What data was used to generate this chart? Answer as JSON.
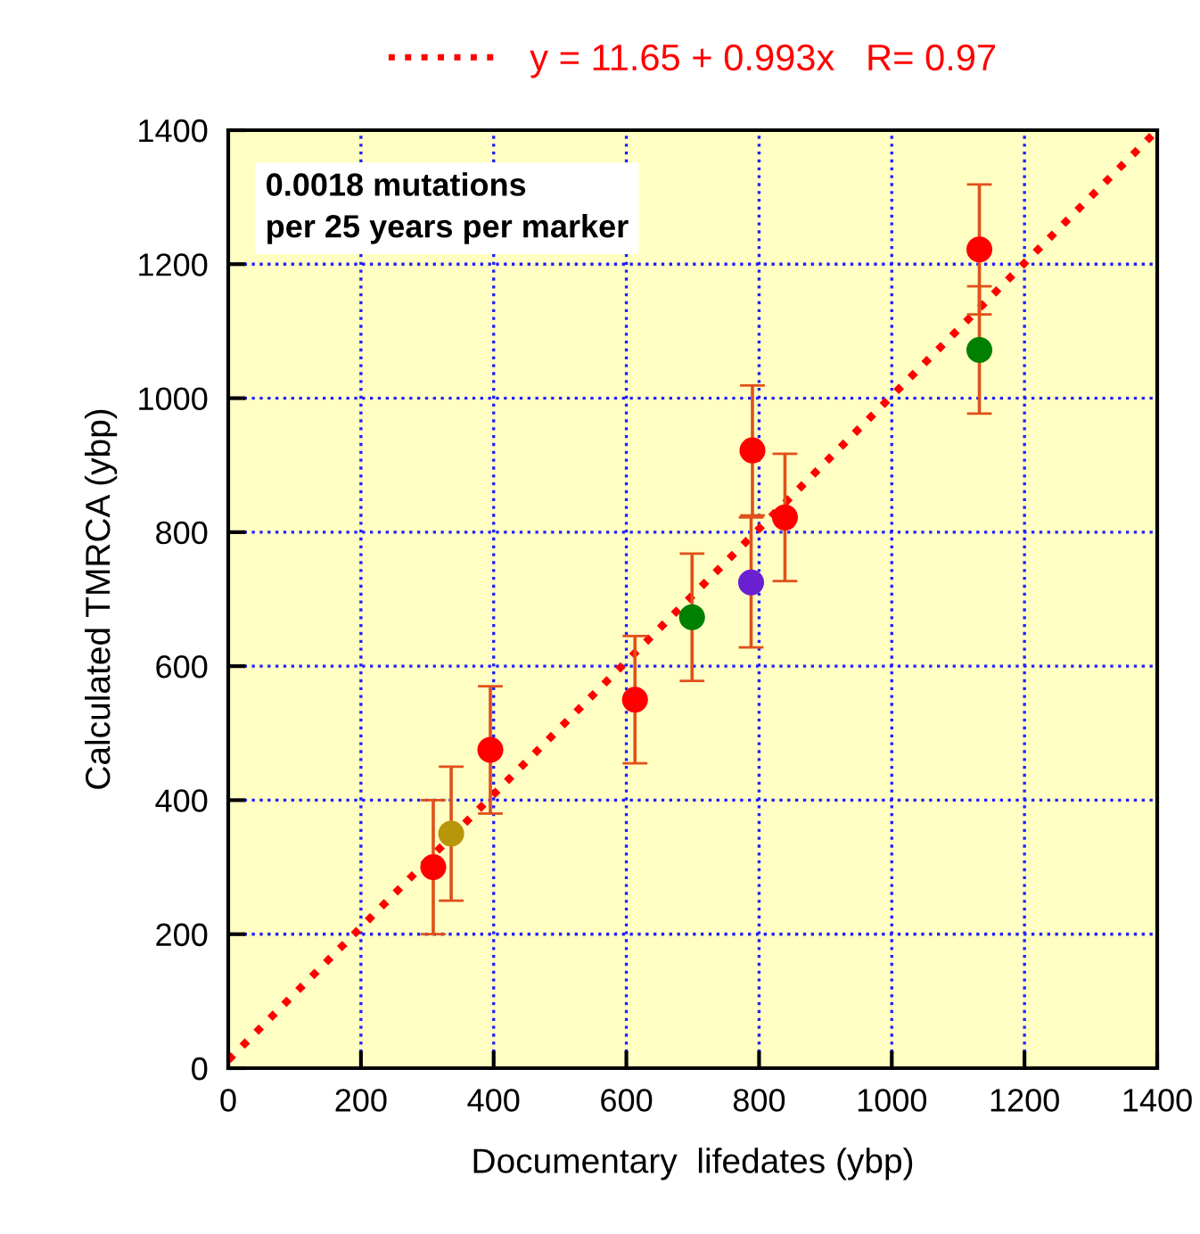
{
  "chart_data": {
    "type": "scatter",
    "xlabel": "Documentary  lifedates (ybp)",
    "ylabel": "Calculated TMRCA (ybp)",
    "xlim": [
      0,
      1400
    ],
    "ylim": [
      0,
      1400
    ],
    "xticks": [
      0,
      200,
      400,
      600,
      800,
      1000,
      1200,
      1400
    ],
    "yticks": [
      0,
      200,
      400,
      600,
      800,
      1000,
      1200,
      1400
    ],
    "grid": true,
    "legend": "top",
    "marker": "circle",
    "annotations": [
      "0.0018 mutations\nper 25 years per marker"
    ],
    "series": [
      {
        "type": "line",
        "name": "y = 11.65 + 0.993x   R= 0.97",
        "color": "#ff0000",
        "line_style": "dotted",
        "marker": "none",
        "x": [
          0,
          1400
        ],
        "values": [
          12,
          1400
        ]
      },
      {
        "x": [
          309,
          336,
          395,
          613,
          699,
          788,
          790,
          839,
          1132,
          1132
        ],
        "values": [
          300,
          350,
          475,
          550,
          673,
          725,
          922,
          822,
          1222,
          1072
        ],
        "colors": [
          "#ff0000",
          "#b8960a",
          "#ff0000",
          "#ff0000",
          "#008000",
          "#6a1fd0",
          "#ff0000",
          "#ff0000",
          "#ff0000",
          "#008000"
        ],
        "errors": [
          100,
          100,
          95,
          95,
          95,
          97,
          97,
          95,
          97,
          95
        ]
      }
    ]
  }
}
